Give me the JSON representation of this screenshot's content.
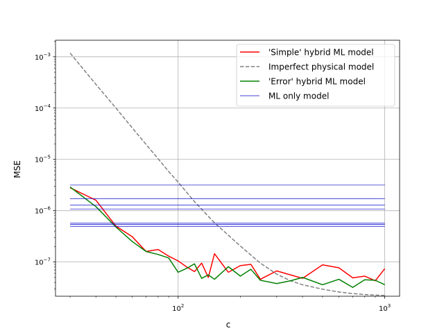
{
  "chart_data": {
    "type": "line",
    "title": "",
    "xlabel": "c",
    "ylabel": "MSE",
    "xscale": "log",
    "yscale": "log",
    "xlim": [
      25.5,
      1180
    ],
    "ylim": [
      2.15e-08,
      0.0021
    ],
    "grid": true,
    "legend_position": "top-right",
    "x_major_ticks": [
      {
        "value": 100,
        "base": "10",
        "exp": "2"
      },
      {
        "value": 1000,
        "base": "10",
        "exp": "3"
      }
    ],
    "y_major_ticks": [
      {
        "value": 1e-07,
        "base": "10",
        "exp": "−7"
      },
      {
        "value": 1e-06,
        "base": "10",
        "exp": "−6"
      },
      {
        "value": 1e-05,
        "base": "10",
        "exp": "−5"
      },
      {
        "value": 0.0001,
        "base": "10",
        "exp": "−4"
      },
      {
        "value": 0.001,
        "base": "10",
        "exp": "−3"
      }
    ],
    "series": [
      {
        "name": "'Simple' hybrid ML model",
        "color": "#ff0000",
        "style": "solid",
        "x": [
          30,
          40,
          50,
          60,
          70,
          80,
          90,
          100,
          110,
          120,
          130,
          140,
          150,
          175,
          200,
          225,
          250,
          300,
          350,
          400,
          500,
          600,
          700,
          800,
          900,
          1000
        ],
        "y": [
          2.8e-06,
          1.6e-06,
          5e-07,
          3.1e-07,
          1.6e-07,
          1.75e-07,
          1.3e-07,
          1.05e-07,
          8e-08,
          6.5e-08,
          9.5e-08,
          5e-08,
          1.45e-07,
          6.3e-08,
          8.5e-08,
          9e-08,
          4.6e-08,
          6.7e-08,
          5.6e-08,
          4.8e-08,
          8.8e-08,
          7.7e-08,
          4.9e-08,
          5.3e-08,
          4.3e-08,
          7.4e-08
        ]
      },
      {
        "name": "Imperfect physical model",
        "color": "#808080",
        "style": "dashed",
        "x": [
          30,
          40,
          50,
          60,
          70,
          80,
          90,
          100,
          120,
          150,
          200,
          250,
          300,
          350,
          400,
          500,
          600,
          700,
          800,
          900,
          1000
        ],
        "y": [
          0.00118,
          0.00029,
          0.0001,
          4.1e-05,
          1.95e-05,
          1.03e-05,
          5.8e-06,
          3.6e-06,
          1.5e-06,
          5.8e-07,
          2.05e-07,
          9.5e-08,
          5.8e-08,
          4.3e-08,
          3.6e-08,
          2.95e-08,
          2.6e-08,
          2.42e-08,
          2.32e-08,
          2.26e-08,
          2.22e-08
        ]
      },
      {
        "name": "'Error' hybrid ML model",
        "color": "#008000",
        "style": "solid",
        "x": [
          30,
          40,
          50,
          60,
          70,
          80,
          90,
          100,
          110,
          120,
          130,
          140,
          150,
          175,
          200,
          225,
          250,
          300,
          350,
          400,
          500,
          600,
          700,
          800,
          900,
          1000
        ],
        "y": [
          2.9e-06,
          1.2e-06,
          4.8e-07,
          2.5e-07,
          1.6e-07,
          1.4e-07,
          1.2e-07,
          6.3e-08,
          7.5e-08,
          9.2e-08,
          4.8e-08,
          5.6e-08,
          4.6e-08,
          8.1e-08,
          5.3e-08,
          7.2e-08,
          4.4e-08,
          3.8e-08,
          4.3e-08,
          5e-08,
          3.6e-08,
          4.6e-08,
          3.2e-08,
          4.5e-08,
          4.4e-08,
          3.6e-08
        ]
      },
      {
        "name": "ML only model",
        "color": "#0000cc",
        "style": "hlines",
        "x_range": [
          30,
          1000
        ],
        "levels": [
          3.15e-06,
          1.72e-06,
          1.28e-06,
          1.08e-06,
          5.7e-07,
          5.4e-07,
          4.95e-07
        ]
      }
    ]
  }
}
